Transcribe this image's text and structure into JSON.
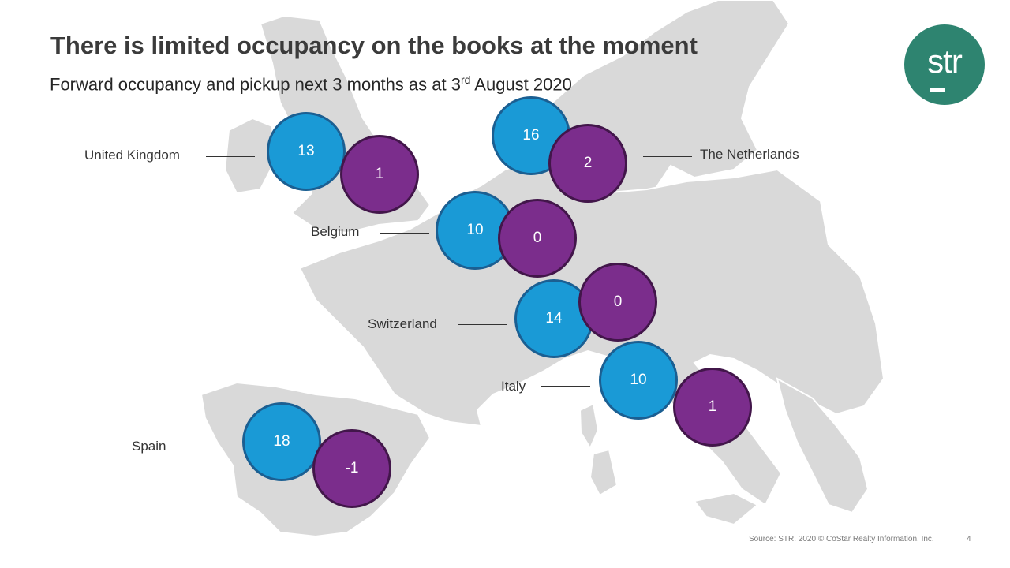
{
  "title": "There is limited occupancy on the books at the moment",
  "subtitle": {
    "before": "Forward occupancy and pickup next 3 months as at 3",
    "sup": "rd",
    "after": " August 2020"
  },
  "logo": {
    "text": "str"
  },
  "colors": {
    "occupancy": "#1a9ad6",
    "pickup": "#7b2d8c",
    "map": "#d9d9d9",
    "brand": "#2e8470"
  },
  "countries": [
    {
      "name": "United Kingdom",
      "occupancy": "13",
      "pickup": "1"
    },
    {
      "name": "The Netherlands",
      "occupancy": "16",
      "pickup": "2"
    },
    {
      "name": "Belgium",
      "occupancy": "10",
      "pickup": "0"
    },
    {
      "name": "Switzerland",
      "occupancy": "14",
      "pickup": "0"
    },
    {
      "name": "Italy",
      "occupancy": "10",
      "pickup": "1"
    },
    {
      "name": "Spain",
      "occupancy": "18",
      "pickup": "-1"
    }
  ],
  "footer": {
    "source": "Source: STR. 2020 © CoStar Realty Information, Inc.",
    "page": "4"
  }
}
